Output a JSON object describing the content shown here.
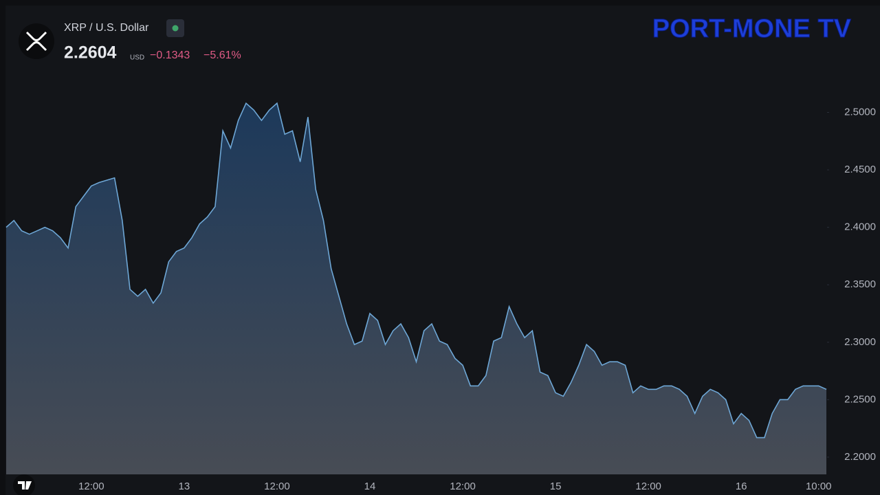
{
  "chart_data": {
    "type": "area",
    "title": "XRP / U.S. Dollar",
    "price": "2.2604",
    "currency": "USD",
    "change": "−0.1343",
    "change_percent": "−5.61%",
    "watermark": "PORT-MONE TV",
    "line_color": "#6ea7d6",
    "categories": [
      null,
      null,
      null,
      null,
      null,
      null,
      null,
      null,
      null,
      null,
      null,
      "12:00",
      null,
      null,
      null,
      null,
      null,
      null,
      null,
      null,
      null,
      null,
      null,
      "13",
      null,
      null,
      null,
      null,
      null,
      null,
      null,
      null,
      null,
      null,
      null,
      "12:00",
      null,
      null,
      null,
      null,
      null,
      null,
      null,
      null,
      null,
      null,
      null,
      "14",
      null,
      null,
      null,
      null,
      null,
      null,
      null,
      null,
      null,
      null,
      null,
      "12:00",
      null,
      null,
      null,
      null,
      null,
      null,
      null,
      null,
      null,
      null,
      null,
      "15",
      null,
      null,
      null,
      null,
      null,
      null,
      null,
      null,
      null,
      null,
      null,
      "12:00",
      null,
      null,
      null,
      null,
      null,
      null,
      null,
      null,
      null,
      null,
      null,
      "16",
      null,
      null,
      null,
      null,
      null,
      null,
      null,
      null,
      null,
      "10:00",
      null
    ],
    "values": [
      2.4,
      2.406,
      2.397,
      2.394,
      2.397,
      2.4,
      2.397,
      2.391,
      2.382,
      2.418,
      2.427,
      2.436,
      2.439,
      2.441,
      2.443,
      2.406,
      2.346,
      2.34,
      2.346,
      2.334,
      2.343,
      2.37,
      2.379,
      2.382,
      2.391,
      2.403,
      2.409,
      2.418,
      2.484,
      2.469,
      2.493,
      2.508,
      2.502,
      2.493,
      2.502,
      2.508,
      2.481,
      2.484,
      2.457,
      2.496,
      2.433,
      2.406,
      2.364,
      2.34,
      2.316,
      2.298,
      2.301,
      2.325,
      2.319,
      2.298,
      2.31,
      2.316,
      2.304,
      2.283,
      2.31,
      2.316,
      2.301,
      2.298,
      2.286,
      2.28,
      2.262,
      2.262,
      2.271,
      2.301,
      2.304,
      2.331,
      2.316,
      2.304,
      2.31,
      2.274,
      2.271,
      2.256,
      2.253,
      2.265,
      2.28,
      2.298,
      2.292,
      2.28,
      2.283,
      2.283,
      2.28,
      2.256,
      2.262,
      2.259,
      2.259,
      2.262,
      2.262,
      2.259,
      2.253,
      2.238,
      2.253,
      2.259,
      2.256,
      2.25,
      2.229,
      2.238,
      2.232,
      2.217,
      2.217,
      2.238,
      2.25,
      2.25,
      2.259,
      2.262,
      2.262,
      2.262,
      2.259
    ],
    "ylim": [
      2.185,
      2.538
    ],
    "yticks": [
      {
        "value": 2.2,
        "label": "2.2000"
      },
      {
        "value": 2.25,
        "label": "2.2500"
      },
      {
        "value": 2.3,
        "label": "2.3000"
      },
      {
        "value": 2.35,
        "label": "2.3500"
      },
      {
        "value": 2.4,
        "label": "2.4000"
      },
      {
        "value": 2.45,
        "label": "2.4500"
      },
      {
        "value": 2.5,
        "label": "2.5000"
      }
    ],
    "grid": false
  }
}
